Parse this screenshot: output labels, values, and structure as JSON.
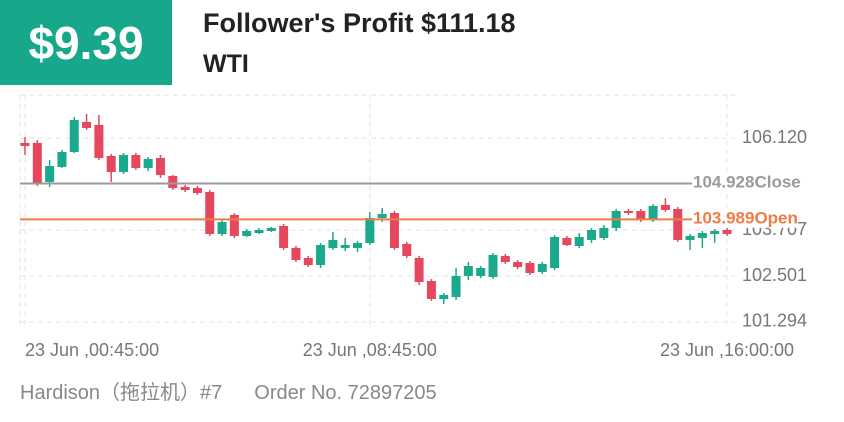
{
  "header": {
    "amount": "$9.39",
    "profit": "Follower's Profit $111.18",
    "symbol": "WTI"
  },
  "footer": {
    "trader": "Hardison（拖拉机）#7",
    "order": "Order No. 72897205"
  },
  "chart_data": {
    "type": "candlestick",
    "categories": [
      "23 Jun ,00:45:00",
      null,
      null,
      null,
      null,
      null,
      null,
      null,
      null,
      null,
      null,
      null,
      null,
      null,
      null,
      null,
      null,
      null,
      null,
      null,
      null,
      null,
      null,
      null,
      null,
      null,
      null,
      null,
      "23 Jun ,08:45:00",
      null,
      null,
      null,
      null,
      null,
      null,
      null,
      null,
      null,
      null,
      null,
      null,
      null,
      null,
      null,
      null,
      null,
      null,
      null,
      null,
      null,
      null,
      null,
      null,
      null,
      null,
      null,
      null,
      "23 Jun ,16:00:00"
    ],
    "open": [
      105.993,
      105.993,
      104.969,
      105.363,
      105.757,
      106.544,
      106.465,
      105.652,
      105.232,
      105.678,
      105.337,
      105.599,
      105.127,
      104.838,
      104.812,
      104.707,
      103.604,
      104.103,
      103.552,
      103.63,
      103.683,
      103.814,
      103.237,
      102.974,
      102.79,
      103.237,
      103.237,
      103.237,
      103.368,
      104.024,
      104.155,
      103.342,
      102.974,
      102.37,
      101.898,
      101.95,
      102.502,
      102.502,
      102.475,
      103.027,
      102.869,
      102.843,
      102.607,
      102.712,
      103.499,
      103.289,
      103.447,
      103.499,
      103.762,
      104.208,
      104.208,
      103.972,
      104.365,
      104.26,
      103.447,
      103.499,
      103.604,
      103.709
    ],
    "high": [
      106.15,
      106.072,
      105.547,
      105.809,
      106.675,
      106.754,
      106.728,
      105.704,
      105.73,
      105.73,
      105.625,
      105.678,
      105.153,
      104.89,
      104.864,
      104.759,
      103.972,
      104.155,
      103.735,
      103.762,
      103.788,
      103.867,
      103.289,
      103.027,
      103.368,
      103.657,
      103.499,
      103.42,
      104.182,
      104.287,
      104.208,
      103.394,
      103.027,
      102.423,
      102.055,
      102.712,
      102.869,
      102.764,
      103.105,
      103.079,
      102.922,
      102.895,
      102.869,
      103.578,
      103.552,
      103.63,
      103.762,
      103.84,
      104.26,
      104.26,
      104.26,
      104.392,
      104.549,
      104.313,
      103.604,
      103.683,
      103.735,
      103.762
    ],
    "low": [
      105.678,
      104.864,
      104.838,
      105.337,
      105.73,
      106.334,
      105.547,
      104.969,
      105.179,
      105.284,
      105.258,
      105.074,
      104.759,
      104.707,
      104.628,
      103.552,
      103.552,
      103.499,
      103.525,
      103.604,
      103.657,
      103.184,
      102.869,
      102.738,
      102.712,
      103.184,
      103.158,
      103.132,
      103.315,
      103.919,
      103.184,
      102.974,
      102.265,
      101.845,
      101.767,
      101.872,
      102.397,
      102.449,
      102.423,
      102.817,
      102.685,
      102.528,
      102.554,
      102.659,
      103.289,
      103.237,
      103.368,
      103.447,
      103.683,
      104.103,
      103.919,
      103.919,
      104.182,
      103.394,
      103.184,
      103.237,
      103.368,
      103.552
    ],
    "close": [
      105.914,
      104.943,
      105.389,
      105.757,
      106.597,
      106.387,
      105.599,
      105.232,
      105.678,
      105.337,
      105.573,
      105.153,
      104.812,
      104.759,
      104.68,
      103.604,
      103.919,
      103.552,
      103.683,
      103.709,
      103.762,
      103.237,
      102.922,
      102.79,
      103.315,
      103.447,
      103.315,
      103.368,
      104.024,
      104.129,
      103.237,
      103.027,
      102.344,
      101.898,
      102.003,
      102.502,
      102.764,
      102.712,
      103.053,
      102.869,
      102.738,
      102.58,
      102.817,
      103.525,
      103.315,
      103.525,
      103.709,
      103.762,
      104.208,
      104.155,
      103.972,
      104.339,
      104.234,
      103.447,
      103.552,
      103.63,
      103.683,
      103.604
    ],
    "up_color": "#1aa98c",
    "down_color": "#e5485c",
    "ylim": [
      101.2,
      107.25
    ],
    "yticks": [
      101.294,
      102.501,
      103.707,
      {
        "value": 106.12,
        "label": "106.120"
      }
    ],
    "grid": true,
    "reference_lines": [
      {
        "value": 104.928,
        "label": "Close",
        "color": "#9a9a9a"
      },
      {
        "value": 103.989,
        "label": "Open",
        "color": "#f07c45"
      }
    ]
  }
}
